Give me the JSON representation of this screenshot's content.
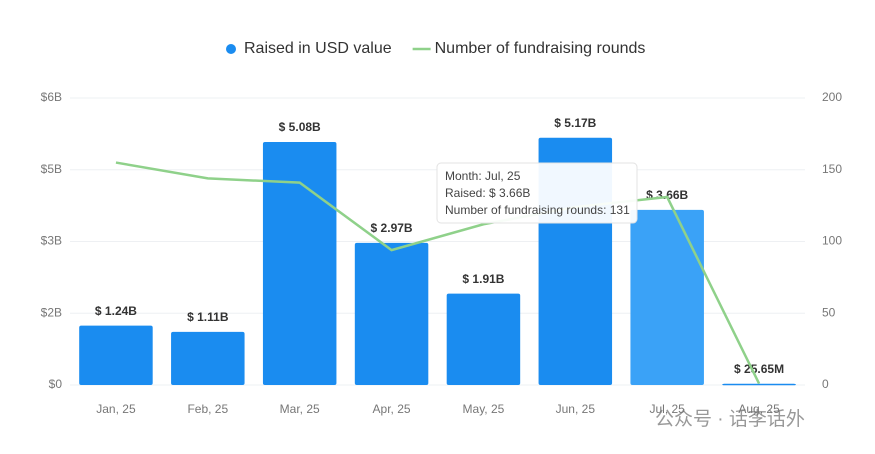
{
  "chart_data": {
    "type": "bar",
    "categories": [
      "Jan, 25",
      "Feb, 25",
      "Mar, 25",
      "Apr, 25",
      "May, 25",
      "Jun, 25",
      "Jul, 25",
      "Aug, 25"
    ],
    "series": [
      {
        "name": "Raised in USD value",
        "color": "#1a8cf0",
        "highlight_color": "#3aa2f7",
        "type": "bar",
        "axis": "y",
        "values": [
          1.24,
          1.11,
          5.08,
          2.97,
          1.91,
          5.17,
          3.66,
          0.02565
        ],
        "value_labels": [
          "$ 1.24B",
          "$ 1.11B",
          "$ 5.08B",
          "$ 2.97B",
          "$ 1.91B",
          "$ 5.17B",
          "$ 3.66B",
          "$ 25.65M"
        ]
      },
      {
        "name": "Number of fundraising rounds",
        "color": "#8fd18a",
        "type": "line",
        "axis": "y2",
        "values": [
          155,
          144,
          141,
          94,
          112,
          124,
          131,
          1
        ]
      }
    ],
    "highlight_index": 6,
    "ylim": [
      0,
      6
    ],
    "yticks": [
      {
        "value": 0,
        "label": "$0"
      },
      {
        "value": 1.5,
        "label": "$2B"
      },
      {
        "value": 3,
        "label": "$3B"
      },
      {
        "value": 4.5,
        "label": "$5B"
      },
      {
        "value": 6,
        "label": "$6B"
      }
    ],
    "y2lim": [
      0,
      200
    ],
    "y2ticks": [
      0,
      50,
      100,
      150,
      200
    ],
    "grid": true,
    "legend": "top",
    "tooltip": [
      "Month: Jul, 25",
      "Raised: $ 3.66B",
      "Number of fundraising rounds: 131"
    ],
    "watermark": "公众号 · 话李话外"
  }
}
